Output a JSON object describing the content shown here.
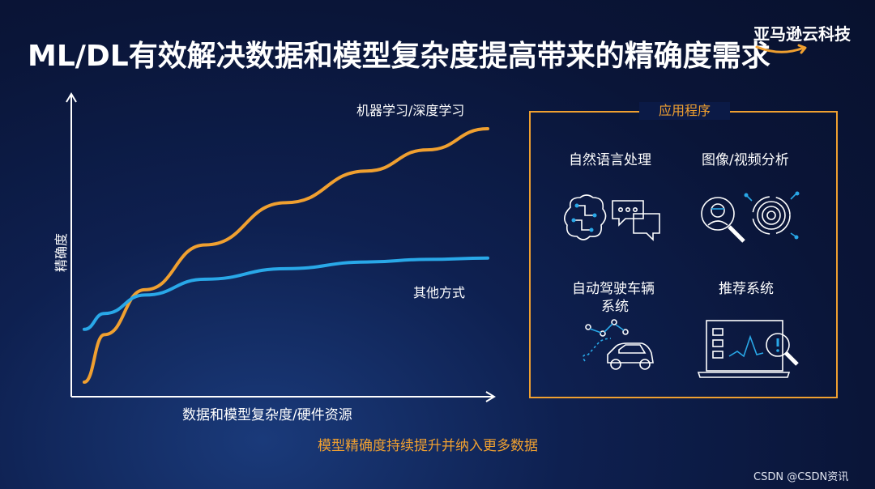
{
  "title": "ML/DL有效解决数据和模型复杂度提高带来的精确度需求",
  "brand": {
    "name": "亚马逊云科技",
    "logo_icon": "amazon-smile-arrow"
  },
  "colors": {
    "accent": "#f0a030",
    "ml_series": "#f0a030",
    "other_series": "#29a8e8",
    "background": "#0b1a46"
  },
  "chart_data": {
    "type": "line",
    "xlabel": "数据和模型复杂度/硬件资源",
    "ylabel": "精确度",
    "x_ticks": [],
    "y_ticks": [],
    "grid": false,
    "series": [
      {
        "name": "机器学习/深度学习",
        "x": [
          0.0,
          0.05,
          0.15,
          0.3,
          0.5,
          0.7,
          0.85,
          1.0
        ],
        "values": [
          0.0,
          0.18,
          0.35,
          0.52,
          0.68,
          0.8,
          0.88,
          0.96
        ]
      },
      {
        "name": "其他方式",
        "x": [
          0.0,
          0.05,
          0.15,
          0.3,
          0.5,
          0.7,
          0.85,
          1.0
        ],
        "values": [
          0.2,
          0.26,
          0.33,
          0.39,
          0.43,
          0.455,
          0.465,
          0.47
        ]
      }
    ]
  },
  "applications": {
    "header": "应用程序",
    "items": [
      {
        "label": "自然语言处理",
        "icon": "brain-chat-icon"
      },
      {
        "label": "图像/视频分析",
        "icon": "face-fingerprint-icon"
      },
      {
        "label_line1": "自动驾驶车辆",
        "label_line2": "系统",
        "icon": "car-route-icon"
      },
      {
        "label": "推荐系统",
        "icon": "dashboard-search-icon"
      }
    ]
  },
  "caption": "模型精确度持续提升并纳入更多数据",
  "watermark": "CSDN @CSDN资讯"
}
